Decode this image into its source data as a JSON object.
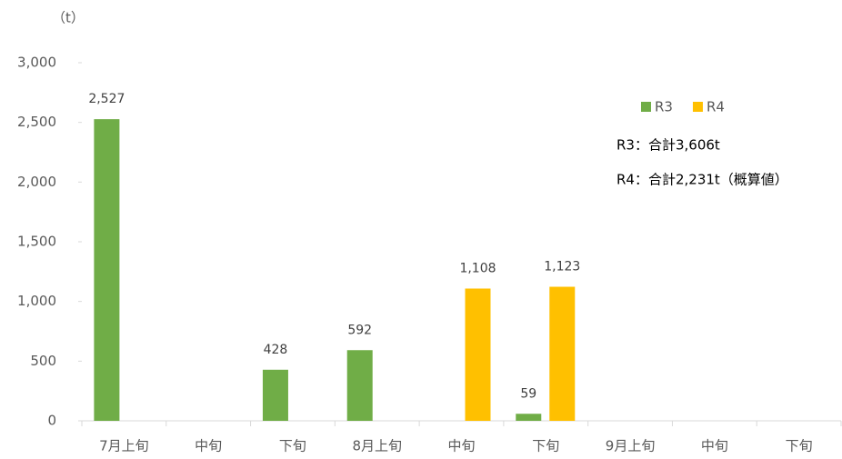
{
  "chart_data": {
    "type": "bar",
    "unit_label": "（t）",
    "categories": [
      "7月上旬",
      "中旬",
      "下旬",
      "8月上旬",
      "中旬",
      "下旬",
      "9月上旬",
      "中旬",
      "下旬"
    ],
    "series": [
      {
        "name": "R3",
        "color": "#70ad47",
        "values": [
          2527,
          null,
          428,
          592,
          null,
          59,
          null,
          null,
          null
        ],
        "value_labels": [
          "2,527",
          null,
          "428",
          "592",
          null,
          "59",
          null,
          null,
          null
        ]
      },
      {
        "name": "R4",
        "color": "#ffc000",
        "values": [
          null,
          null,
          null,
          null,
          1108,
          1123,
          null,
          null,
          null
        ],
        "value_labels": [
          null,
          null,
          null,
          null,
          "1,108",
          "1,123",
          null,
          null,
          null
        ]
      }
    ],
    "annotations": [
      "R3：合計3,606t",
      "R4：合計2,231t（概算値）"
    ],
    "ylim": [
      0,
      3000
    ],
    "yticks": [
      0,
      500,
      {
        "value": 1000,
        "label": "1,000"
      },
      {
        "value": 1500,
        "label": "1,500"
      },
      {
        "value": 2000,
        "label": "2,000"
      },
      {
        "value": 2500,
        "label": "2,500"
      },
      {
        "value": 3000,
        "label": "3,000"
      }
    ],
    "grid": false
  }
}
